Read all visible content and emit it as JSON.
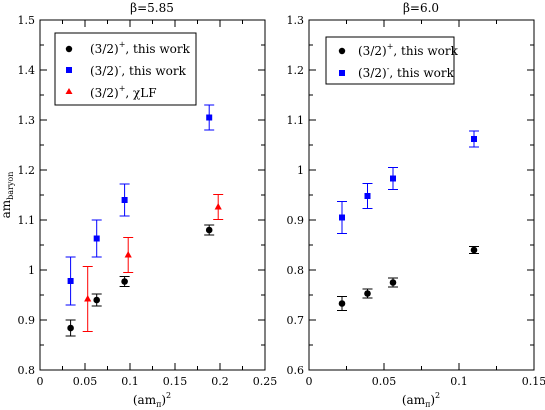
{
  "chart_data": [
    {
      "type": "scatter",
      "title": "β=5.85",
      "xlabel_base": "(am",
      "xlabel_sub": "π",
      "xlabel_close": ")",
      "xlabel_sup": "2",
      "ylabel_base": "am",
      "ylabel_sub": "baryon",
      "xlim": [
        0,
        0.25
      ],
      "ylim": [
        0.8,
        1.5
      ],
      "xticks": [
        0,
        0.05,
        0.1,
        0.15,
        0.2,
        0.25
      ],
      "xtick_labels": [
        "0",
        "0.05",
        "0.1",
        "0.15",
        "0.2",
        "0.25"
      ],
      "yticks": [
        0.8,
        0.9,
        1.0,
        1.1,
        1.2,
        1.3,
        1.4,
        1.5
      ],
      "ytick_labels": [
        "0.8",
        "0.9",
        "1",
        "1.1",
        "1.2",
        "1.3",
        "1.4",
        "1.5"
      ],
      "legend_position": "top-left",
      "series": [
        {
          "name_base": "(3/2)",
          "name_sup": "+",
          "name_tail": ", this work",
          "marker": "circle",
          "color": "#000000",
          "points": [
            {
              "x": 0.034,
              "y": 0.884,
              "err": 0.016
            },
            {
              "x": 0.063,
              "y": 0.94,
              "err": 0.012
            },
            {
              "x": 0.094,
              "y": 0.977,
              "err": 0.01
            },
            {
              "x": 0.188,
              "y": 1.08,
              "err": 0.01
            }
          ]
        },
        {
          "name_base": "(3/2)",
          "name_sup": "-",
          "name_tail": ", this work",
          "marker": "square",
          "color": "#0000ff",
          "points": [
            {
              "x": 0.034,
              "y": 0.978,
              "err": 0.048
            },
            {
              "x": 0.063,
              "y": 1.063,
              "err": 0.037
            },
            {
              "x": 0.094,
              "y": 1.14,
              "err": 0.032
            },
            {
              "x": 0.188,
              "y": 1.305,
              "err": 0.025
            }
          ]
        },
        {
          "name_base": "(3/2)",
          "name_sup": "+",
          "name_tail": ", χLF",
          "marker": "triangle",
          "color": "#ff0000",
          "points": [
            {
              "x": 0.053,
              "y": 0.942,
              "err": 0.065
            },
            {
              "x": 0.098,
              "y": 1.03,
              "err": 0.035
            },
            {
              "x": 0.198,
              "y": 1.126,
              "err": 0.025
            }
          ]
        }
      ]
    },
    {
      "type": "scatter",
      "title": "β=6.0",
      "xlabel_base": "(am",
      "xlabel_sub": "π",
      "xlabel_close": ")",
      "xlabel_sup": "2",
      "xlim": [
        0,
        0.15
      ],
      "ylim": [
        0.6,
        1.3
      ],
      "xticks": [
        0,
        0.05,
        0.1,
        0.15
      ],
      "xtick_labels": [
        "0",
        "0.05",
        "0.1",
        "0.15"
      ],
      "yticks": [
        0.6,
        0.7,
        0.8,
        0.9,
        1.0,
        1.1,
        1.2,
        1.3
      ],
      "ytick_labels": [
        "0.6",
        "0.7",
        "0.8",
        "0.9",
        "1",
        "1.1",
        "1.2",
        "1.3"
      ],
      "legend_position": "top-left",
      "series": [
        {
          "name_base": "(3/2)",
          "name_sup": "+",
          "name_tail": ", this work",
          "marker": "circle",
          "color": "#000000",
          "points": [
            {
              "x": 0.022,
              "y": 0.733,
              "err": 0.014
            },
            {
              "x": 0.039,
              "y": 0.753,
              "err": 0.009
            },
            {
              "x": 0.056,
              "y": 0.775,
              "err": 0.009
            },
            {
              "x": 0.11,
              "y": 0.84,
              "err": 0.007
            }
          ]
        },
        {
          "name_base": "(3/2)",
          "name_sup": "-",
          "name_tail": ", this work",
          "marker": "square",
          "color": "#0000ff",
          "points": [
            {
              "x": 0.022,
              "y": 0.905,
              "err": 0.032
            },
            {
              "x": 0.039,
              "y": 0.948,
              "err": 0.025
            },
            {
              "x": 0.056,
              "y": 0.983,
              "err": 0.022
            },
            {
              "x": 0.11,
              "y": 1.062,
              "err": 0.016
            }
          ]
        }
      ]
    }
  ]
}
